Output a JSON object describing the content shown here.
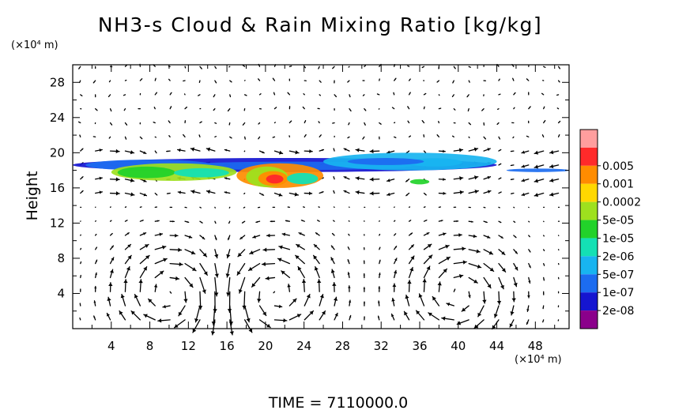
{
  "chart_data": {
    "type": "heatmap",
    "title": "NH3-s Cloud & Rain Mixing Ratio [kg/kg]",
    "ylabel": "Height",
    "y_unit_label": "(×10⁴ m)",
    "x_unit_label": "(×10⁴ m)",
    "xlim": [
      0,
      51.5
    ],
    "ylim": [
      0,
      30
    ],
    "x_ticks": [
      4,
      8,
      12,
      16,
      20,
      24,
      28,
      32,
      36,
      40,
      44,
      48
    ],
    "y_ticks": [
      4,
      8,
      12,
      16,
      20,
      24,
      28
    ],
    "time_label": "TIME = 7110000.0",
    "colorbar": {
      "levels": [
        "2e-08",
        "1e-07",
        "5e-07",
        "2e-06",
        "1e-05",
        "5e-05",
        "0.0002",
        "0.001",
        "0.005"
      ],
      "colors": [
        "#8b008b",
        "#1515d0",
        "#1c6cf0",
        "#18b4f0",
        "#14e0b4",
        "#22d22a",
        "#9ee01e",
        "#ffd800",
        "#ff8c00",
        "#ff2a2a",
        "#ff9e9e"
      ]
    },
    "cloud_regions": [
      {
        "x_range": [
          0,
          44
        ],
        "y_range": [
          17.8,
          19.4
        ],
        "max_level": "1e-07"
      },
      {
        "x_range": [
          4,
          17
        ],
        "y_range": [
          16.8,
          18.8
        ],
        "max_level": "5e-05"
      },
      {
        "x_range": [
          17,
          26
        ],
        "y_range": [
          16,
          18.8
        ],
        "max_level": "0.001"
      },
      {
        "x_range": [
          26,
          44
        ],
        "y_range": [
          18,
          20
        ],
        "max_level": "5e-07"
      },
      {
        "x_range": [
          35,
          37
        ],
        "y_range": [
          16.4,
          17
        ],
        "max_level": "1e-05"
      },
      {
        "x_range": [
          45,
          51.5
        ],
        "y_range": [
          17.8,
          18.2
        ],
        "max_level": "1e-07"
      }
    ],
    "wind_field_pattern": [
      {
        "x_center": 10,
        "y_center": 4,
        "rotation": "clockwise"
      },
      {
        "x_center": 21,
        "y_center": 4,
        "rotation": "counterclockwise"
      },
      {
        "x_center": 40,
        "y_center": 4,
        "rotation": "clockwise"
      }
    ]
  }
}
